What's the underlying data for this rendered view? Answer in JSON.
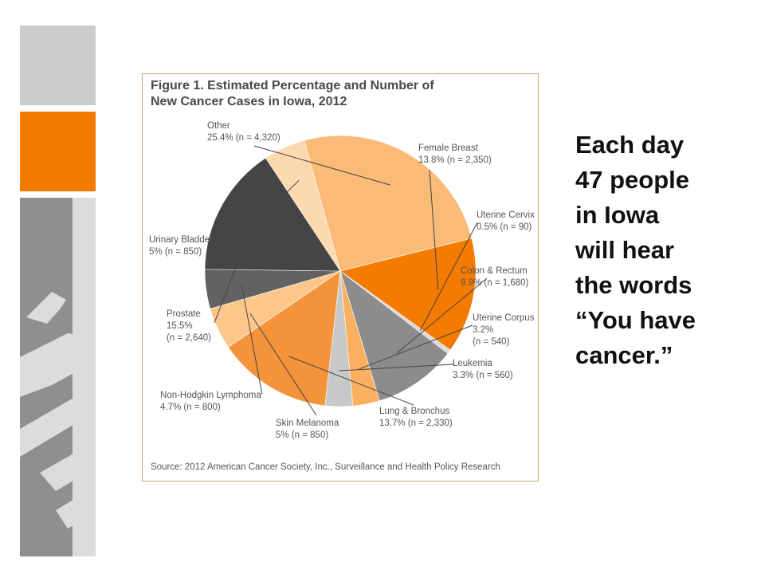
{
  "chart_data": {
    "type": "pie",
    "title_lines": [
      "Figure 1. Estimated Percentage and Number of",
      "New Cancer Cases in Iowa, 2012"
    ],
    "source": "Source: 2012 American Cancer Society, Inc., Surveillance and Health Policy Research",
    "slices": [
      {
        "name": "Female Breast",
        "pct_text": "13.8% (n = 2,350)",
        "value": 13.8,
        "color": "#f47a00"
      },
      {
        "name": "Uterine Cervix",
        "pct_text": "0.5% (n = 90)",
        "value": 0.5,
        "color": "#d9d9d9"
      },
      {
        "name": "Colon & Rectum",
        "pct_text": "9.9% (n = 1,680)",
        "value": 9.9,
        "color": "#8c8c8c"
      },
      {
        "name": "Uterine Corpus",
        "pct_text": "3.2%",
        "pct_text2": "(n = 540)",
        "value": 3.2,
        "color": "#fbb05f"
      },
      {
        "name": "Leukemia",
        "pct_text": "3.3% (n = 560)",
        "value": 3.3,
        "color": "#c8c8c8"
      },
      {
        "name": "Lung & Bronchus",
        "pct_text": "13.7% (n = 2,330)",
        "value": 13.7,
        "color": "#f5933b"
      },
      {
        "name": "Skin Melanoma",
        "pct_text": "5% (n = 850)",
        "value": 5.0,
        "color": "#fdc68a"
      },
      {
        "name": "Non-Hodgkin Lymphoma",
        "pct_text": "4.7% (n = 800)",
        "value": 4.7,
        "color": "#626262"
      },
      {
        "name": "Prostate",
        "pct_text": "15.5%",
        "pct_text2": "(n = 2,640)",
        "value": 15.5,
        "color": "#454545"
      },
      {
        "name": "Urinary Bladder",
        "pct_text": "5% (n = 850)",
        "value": 5.0,
        "color": "#fdd9b0"
      },
      {
        "name": "Other",
        "pct_text": "25.4% (n = 4,320)",
        "value": 25.4,
        "color": "#fbbb78"
      }
    ]
  },
  "side_text": {
    "lines": [
      "Each day",
      "47 people",
      "in Iowa",
      "will hear",
      "the words",
      "“You have",
      "cancer.”"
    ]
  },
  "colors": {
    "accent": "#f47a00",
    "deco_gray": "#8f8f8f",
    "deco_light": "#cccccc"
  }
}
